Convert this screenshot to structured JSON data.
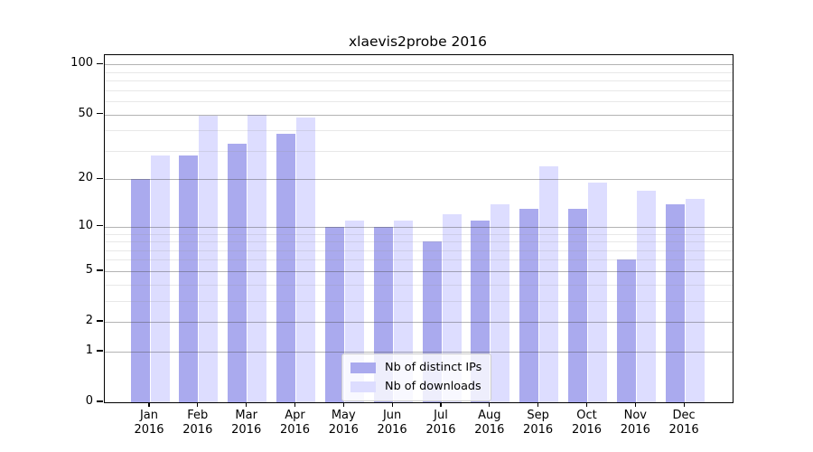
{
  "chart_data": {
    "type": "bar",
    "title": "xlaevis2probe 2016",
    "categories": [
      "Jan",
      "Feb",
      "Mar",
      "Apr",
      "May",
      "Jun",
      "Jul",
      "Aug",
      "Sep",
      "Oct",
      "Nov",
      "Dec"
    ],
    "x_tick_year": "2016",
    "series": [
      {
        "name": "Nb of distinct IPs",
        "color": "#aaaaee",
        "values": [
          20,
          28,
          33,
          38,
          10,
          10,
          8,
          11,
          13,
          13,
          6,
          14
        ]
      },
      {
        "name": "Nb of downloads",
        "color": "#ddddff",
        "values": [
          28,
          49,
          50,
          48,
          11,
          11,
          12,
          14,
          24,
          19,
          17,
          15
        ]
      }
    ],
    "y_axis": {
      "scale": "log10(value+1)",
      "tick_values": [
        100,
        50,
        20,
        10,
        5,
        2,
        1,
        0
      ],
      "minor_gridline_values": [
        3,
        4,
        6,
        7,
        8,
        9,
        30,
        40,
        60,
        70,
        80,
        90
      ],
      "range": [
        0,
        100
      ]
    },
    "grid": true,
    "legend_position": "inside-bottom-center"
  }
}
